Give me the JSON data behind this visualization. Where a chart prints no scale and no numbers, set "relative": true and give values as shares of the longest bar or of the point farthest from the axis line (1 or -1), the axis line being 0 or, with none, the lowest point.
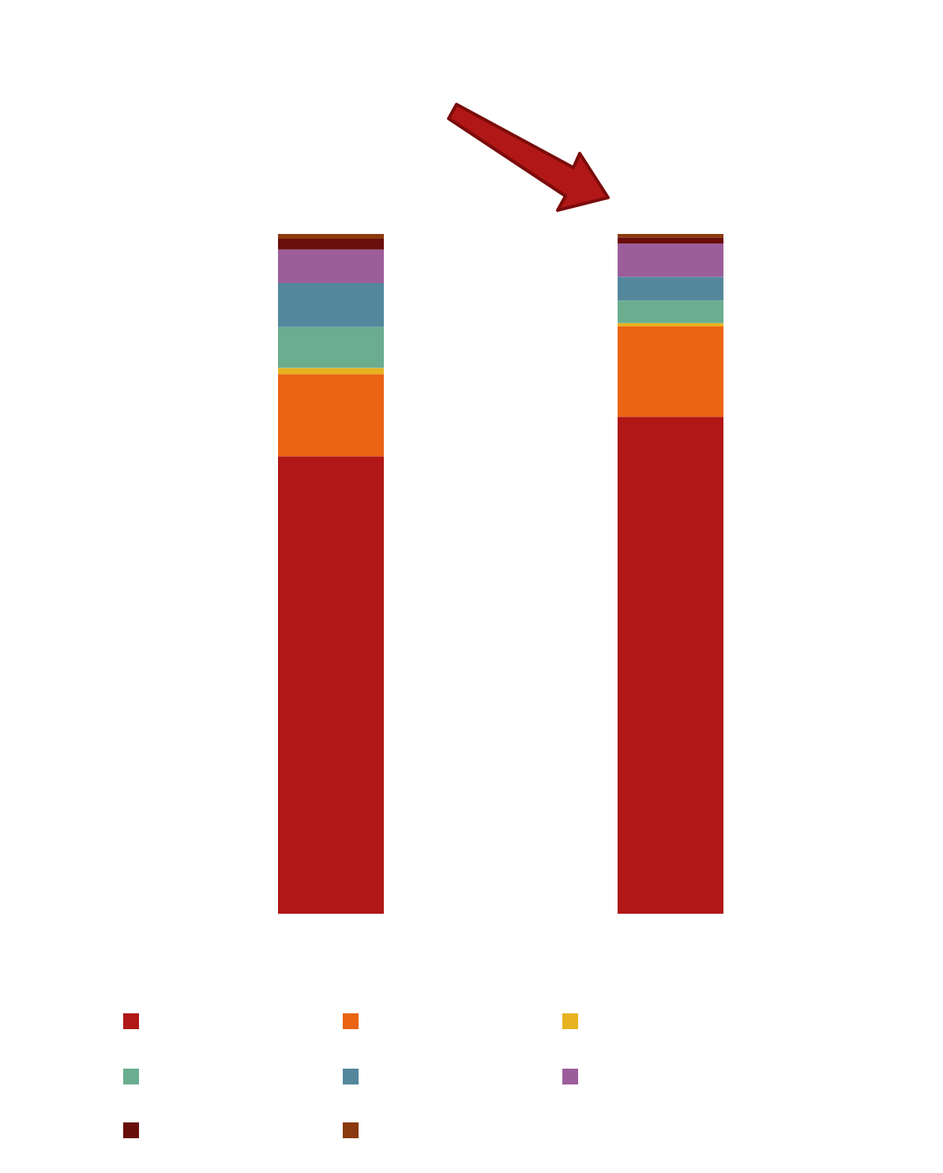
{
  "chart_data": {
    "type": "bar",
    "stacked": true,
    "relative": true,
    "categories": [
      null,
      null
    ],
    "series": [
      {
        "color": "#b11716",
        "values": [
          0.673,
          0.731
        ]
      },
      {
        "color": "#ea6413",
        "values": [
          0.121,
          0.133
        ]
      },
      {
        "color": "#e8b321",
        "values": [
          0.009,
          0.005
        ]
      },
      {
        "color": "#6aad8f",
        "values": [
          0.06,
          0.033
        ]
      },
      {
        "color": "#53879c",
        "values": [
          0.065,
          0.035
        ]
      },
      {
        "color": "#9c5e9b",
        "values": [
          0.049,
          0.049
        ]
      },
      {
        "color": "#6a0e0c",
        "values": [
          0.016,
          0.009
        ]
      },
      {
        "color": "#8a3a0e",
        "values": [
          0.007,
          0.005
        ]
      }
    ]
  }
}
